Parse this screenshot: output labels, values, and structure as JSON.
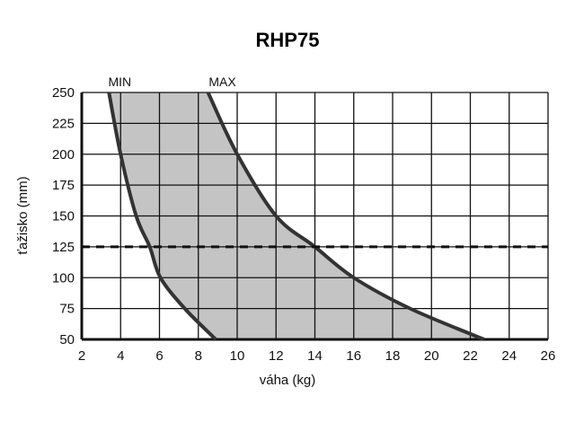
{
  "chart_data": {
    "type": "area",
    "title": "RHP75",
    "xlabel": "váha (kg)",
    "ylabel": "ťažisko (mm)",
    "xlim": [
      2,
      26
    ],
    "ylim": [
      50,
      250
    ],
    "xticks": [
      2,
      4,
      6,
      8,
      10,
      12,
      14,
      16,
      18,
      20,
      22,
      24,
      26
    ],
    "yticks": [
      50,
      75,
      100,
      125,
      150,
      175,
      200,
      225,
      250
    ],
    "grid": true,
    "fill_color": "#c4c4c4",
    "line_color": "#333333",
    "series": [
      {
        "name": "MIN",
        "points": [
          [
            3.4,
            250
          ],
          [
            4.0,
            200
          ],
          [
            4.8,
            150
          ],
          [
            5.5,
            125
          ],
          [
            6.05,
            100
          ],
          [
            7.3,
            75
          ],
          [
            8.9,
            50
          ]
        ]
      },
      {
        "name": "MAX",
        "points": [
          [
            8.5,
            250
          ],
          [
            10.0,
            200
          ],
          [
            12.0,
            150
          ],
          [
            14.0,
            125
          ],
          [
            16.0,
            100
          ],
          [
            18.9,
            75
          ],
          [
            22.7,
            50
          ]
        ]
      }
    ],
    "reference_line": {
      "y": 125,
      "style": "dashed"
    }
  }
}
